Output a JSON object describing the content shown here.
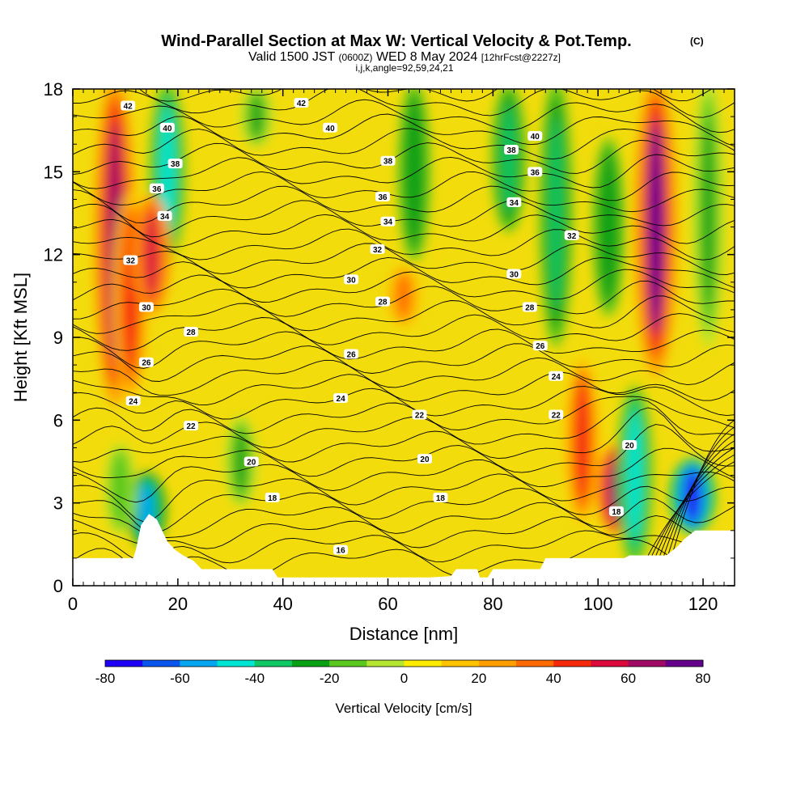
{
  "header": {
    "title": "Wind-Parallel Section at Max W: Vertical Velocity & Pot.Temp.",
    "title_mark": "(C)",
    "valid_prefix": "Valid 1500 JST",
    "valid_utc": "(0600Z)",
    "valid_date": "WED 8 May 2024",
    "forecast": "[12hrFcst@2227z]",
    "indices": "i,j,k,angle=92,59,24,21"
  },
  "chart_data": {
    "type": "heatmap",
    "xlabel": "Distance [nm]",
    "ylabel": "Height [Kft MSL]",
    "xlim": [
      0,
      126
    ],
    "ylim": [
      0,
      18
    ],
    "x_ticks": [
      0,
      20,
      40,
      60,
      80,
      100,
      120
    ],
    "y_ticks": [
      0,
      3,
      6,
      9,
      12,
      15,
      18
    ],
    "colorbar": {
      "label": "Vertical Velocity [cm/s]",
      "range": [
        -80,
        80
      ],
      "tick_values": [
        -80,
        -60,
        -40,
        -20,
        0,
        20,
        40,
        60,
        80
      ],
      "tick_labels": [
        "-80",
        "-60",
        "-40",
        "-20",
        "0",
        "20",
        "40",
        "60",
        "80"
      ],
      "colors": [
        "#1d00f5",
        "#0a55ee",
        "#06a6f0",
        "#00e6d2",
        "#0fc864",
        "#0aa014",
        "#5ac81e",
        "#b4e632",
        "#ffec00",
        "#ffc300",
        "#ff9e00",
        "#ff6a00",
        "#f52a0a",
        "#dc0a3c",
        "#a00a64",
        "#64008c"
      ]
    },
    "vertical_velocity_features": [
      {
        "x": 8,
        "z_top": 18,
        "z_bottom": 7,
        "w": 65
      },
      {
        "x": 11,
        "z_top": 14,
        "z_bottom": 7,
        "w": 45
      },
      {
        "x": 18,
        "z_top": 18,
        "z_bottom": 12,
        "w": -45
      },
      {
        "x": 15,
        "z_top": 14,
        "z_bottom": 10,
        "w": 55
      },
      {
        "x": 14,
        "z_top": 4,
        "z_bottom": 1.5,
        "w": -55
      },
      {
        "x": 9,
        "z_top": 5,
        "z_bottom": 2,
        "w": -20
      },
      {
        "x": 35,
        "z_top": 18,
        "z_bottom": 16,
        "w": -25
      },
      {
        "x": 32,
        "z_top": 6,
        "z_bottom": 3,
        "w": -25
      },
      {
        "x": 65,
        "z_top": 18,
        "z_bottom": 12,
        "w": -30
      },
      {
        "x": 63,
        "z_top": 11.5,
        "z_bottom": 9.5,
        "w": 30
      },
      {
        "x": 83,
        "z_top": 18,
        "z_bottom": 13,
        "w": -40
      },
      {
        "x": 92,
        "z_top": 18,
        "z_bottom": 9,
        "w": -35
      },
      {
        "x": 102,
        "z_top": 16,
        "z_bottom": 10,
        "w": -30
      },
      {
        "x": 97,
        "z_top": 8,
        "z_bottom": 2.5,
        "w": 45
      },
      {
        "x": 104,
        "z_top": 5,
        "z_bottom": 2,
        "w": 75
      },
      {
        "x": 107,
        "z_top": 7,
        "z_bottom": 1,
        "w": -45
      },
      {
        "x": 111,
        "z_top": 18,
        "z_bottom": 8,
        "w": 70
      },
      {
        "x": 118,
        "z_top": 4.5,
        "z_bottom": 2,
        "w": -80
      },
      {
        "x": 121,
        "z_top": 18,
        "z_bottom": 9,
        "w": -25
      }
    ],
    "theta_contour_labels": [
      {
        "x": 10.5,
        "y": 17.4,
        "text": "42"
      },
      {
        "x": 43.5,
        "y": 17.5,
        "text": "42"
      },
      {
        "x": 18,
        "y": 16.6,
        "text": "40"
      },
      {
        "x": 49,
        "y": 16.6,
        "text": "40"
      },
      {
        "x": 88,
        "y": 16.3,
        "text": "40"
      },
      {
        "x": 19.5,
        "y": 15.3,
        "text": "38"
      },
      {
        "x": 60,
        "y": 15.4,
        "text": "38"
      },
      {
        "x": 83.5,
        "y": 15.8,
        "text": "38"
      },
      {
        "x": 16,
        "y": 14.4,
        "text": "36"
      },
      {
        "x": 59,
        "y": 14.1,
        "text": "36"
      },
      {
        "x": 88,
        "y": 15.0,
        "text": "36"
      },
      {
        "x": 17.5,
        "y": 13.4,
        "text": "34"
      },
      {
        "x": 60,
        "y": 13.2,
        "text": "34"
      },
      {
        "x": 84,
        "y": 13.9,
        "text": "34"
      },
      {
        "x": 11,
        "y": 11.8,
        "text": "32"
      },
      {
        "x": 58,
        "y": 12.2,
        "text": "32"
      },
      {
        "x": 95,
        "y": 12.7,
        "text": "32"
      },
      {
        "x": 14,
        "y": 10.1,
        "text": "30"
      },
      {
        "x": 53,
        "y": 11.1,
        "text": "30"
      },
      {
        "x": 84,
        "y": 11.3,
        "text": "30"
      },
      {
        "x": 22.5,
        "y": 9.2,
        "text": "28"
      },
      {
        "x": 59,
        "y": 10.3,
        "text": "28"
      },
      {
        "x": 87,
        "y": 10.1,
        "text": "28"
      },
      {
        "x": 14,
        "y": 8.1,
        "text": "26"
      },
      {
        "x": 53,
        "y": 8.4,
        "text": "26"
      },
      {
        "x": 89,
        "y": 8.7,
        "text": "26"
      },
      {
        "x": 11.5,
        "y": 6.7,
        "text": "24"
      },
      {
        "x": 51,
        "y": 6.8,
        "text": "24"
      },
      {
        "x": 92,
        "y": 7.6,
        "text": "24"
      },
      {
        "x": 22.5,
        "y": 5.8,
        "text": "22"
      },
      {
        "x": 66,
        "y": 6.2,
        "text": "22"
      },
      {
        "x": 92,
        "y": 6.2,
        "text": "22"
      },
      {
        "x": 34,
        "y": 4.5,
        "text": "20"
      },
      {
        "x": 67,
        "y": 4.6,
        "text": "20"
      },
      {
        "x": 106,
        "y": 5.1,
        "text": "20"
      },
      {
        "x": 38,
        "y": 3.2,
        "text": "18"
      },
      {
        "x": 70,
        "y": 3.2,
        "text": "18"
      },
      {
        "x": 103.5,
        "y": 2.7,
        "text": "18"
      },
      {
        "x": 51,
        "y": 1.3,
        "text": "16"
      }
    ],
    "terrain_height": [
      [
        0,
        1.0
      ],
      [
        3,
        1.0
      ],
      [
        7,
        1.0
      ],
      [
        11.5,
        1.0
      ],
      [
        12,
        1.3
      ],
      [
        13,
        2.2
      ],
      [
        14.5,
        2.6
      ],
      [
        16,
        2.4
      ],
      [
        17,
        2.0
      ],
      [
        18,
        1.6
      ],
      [
        19.5,
        1.3
      ],
      [
        21,
        1.1
      ],
      [
        23,
        0.9
      ],
      [
        24.5,
        0.6
      ],
      [
        35,
        0.6
      ],
      [
        38,
        0.6
      ],
      [
        39,
        0.3
      ],
      [
        57,
        0.3
      ],
      [
        65,
        0.3
      ],
      [
        68,
        0.3
      ],
      [
        72,
        0.35
      ],
      [
        73,
        0.6
      ],
      [
        77,
        0.6
      ],
      [
        77.5,
        0.3
      ],
      [
        79,
        0.3
      ],
      [
        80,
        0.6
      ],
      [
        89,
        0.6
      ],
      [
        90,
        1.0
      ],
      [
        100,
        1.0
      ],
      [
        105,
        1.0
      ],
      [
        106,
        1.1
      ],
      [
        110,
        1.1
      ],
      [
        113,
        1.1
      ],
      [
        115,
        1.4
      ],
      [
        116.5,
        1.7
      ],
      [
        118.5,
        2.0
      ],
      [
        126,
        2.0
      ]
    ]
  }
}
